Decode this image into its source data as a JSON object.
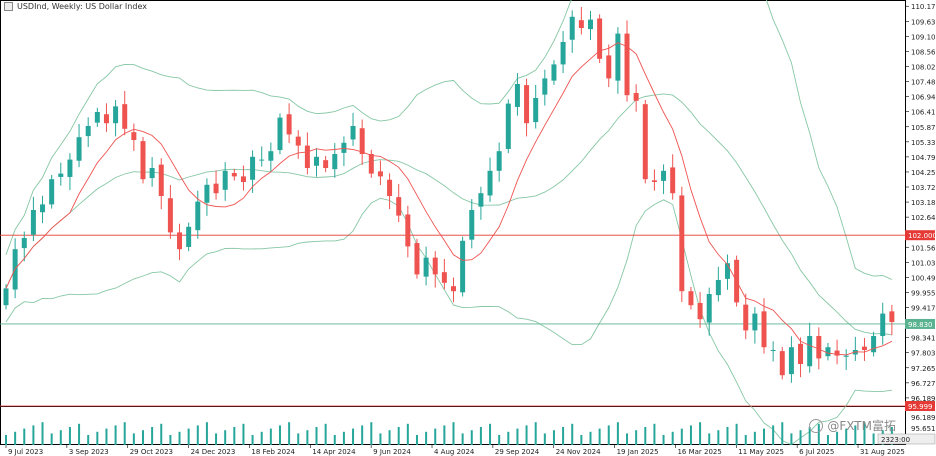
{
  "header": {
    "symbol_label": "USDInd, Weekly: US Dollar Index",
    "icon": "chart-icon"
  },
  "watermark": {
    "text": "@FXTM富拓",
    "icon": "fxtm-logo-icon"
  },
  "colors": {
    "bull": "#26a69a",
    "bear": "#ef5350",
    "ma": "#ef5350",
    "bands": "#86c7a4",
    "current_line": "#59b390",
    "level_line": "#e53935",
    "grid_border": "#000000",
    "volume": "#26a69a"
  },
  "chart_data": {
    "type": "candlestick",
    "title": "USDInd, Weekly: US Dollar Index",
    "indicators": [
      "Moving Average (red)",
      "Bollinger Bands (green)",
      "Volume"
    ],
    "ylim": [
      95.9,
      110.4
    ],
    "y_ticks": [
      "110.177",
      "109.639",
      "109.101",
      "108.563",
      "108.025",
      "107.487",
      "106.949",
      "106.411",
      "105.873",
      "105.335",
      "104.797",
      "104.259",
      "103.721",
      "103.183",
      "102.645",
      "101.569",
      "101.031",
      "100.493",
      "99.955",
      "99.417",
      "98.879",
      "98.341",
      "97.803",
      "97.265",
      "96.727",
      "96.189"
    ],
    "x_labels": [
      "9 Jul 2023",
      "3 Sep 2023",
      "29 Oct 2023",
      "24 Dec 2023",
      "18 Feb 2024",
      "14 Apr 2024",
      "9 Jun 2024",
      "4 Aug 2024",
      "29 Sep 2024",
      "24 Nov 2024",
      "19 Jan 2025",
      "16 Mar 2025",
      "11 May 2025",
      "6 Jul 2025",
      "31 Aug 2025"
    ],
    "price_labels": {
      "horizontal_level": "102.000",
      "current": "98.830",
      "volume_level": "95.999",
      "volume_counter": "2323:00"
    },
    "horizontal_level": 102.0,
    "current_price": 98.83,
    "volume_ticks": [
      "96.189",
      "95.651",
      "95.113"
    ],
    "closes": [
      100.1,
      101.5,
      101.9,
      102.9,
      103.1,
      104.0,
      104.2,
      104.7,
      105.5,
      105.9,
      106.4,
      106.0,
      106.6,
      105.8,
      105.4,
      104.0,
      104.4,
      103.4,
      102.1,
      101.5,
      102.3,
      103.2,
      103.8,
      103.5,
      104.3,
      104.1,
      103.9,
      104.8,
      104.7,
      105.0,
      106.2,
      105.6,
      105.2,
      104.4,
      104.8,
      104.4,
      104.9,
      105.3,
      105.9,
      104.9,
      104.2,
      104.1,
      103.4,
      102.7,
      101.6,
      100.6,
      101.2,
      100.6,
      100.3,
      100.0,
      101.8,
      102.9,
      103.5,
      104.3,
      105.0,
      106.7,
      107.4,
      106.0,
      106.9,
      107.6,
      108.1,
      108.9,
      109.8,
      109.4,
      109.7,
      108.3,
      107.6,
      109.2,
      107.0,
      106.8,
      104.0,
      103.9,
      104.3,
      103.5,
      100.0,
      99.5,
      99.0,
      99.9,
      100.4,
      101.0,
      99.6,
      98.6,
      99.2,
      98.0,
      97.9,
      97.0,
      98.0,
      97.4,
      98.4,
      97.6,
      98.0,
      97.7,
      97.7,
      97.9,
      97.9,
      98.4,
      99.2,
      98.9
    ]
  }
}
